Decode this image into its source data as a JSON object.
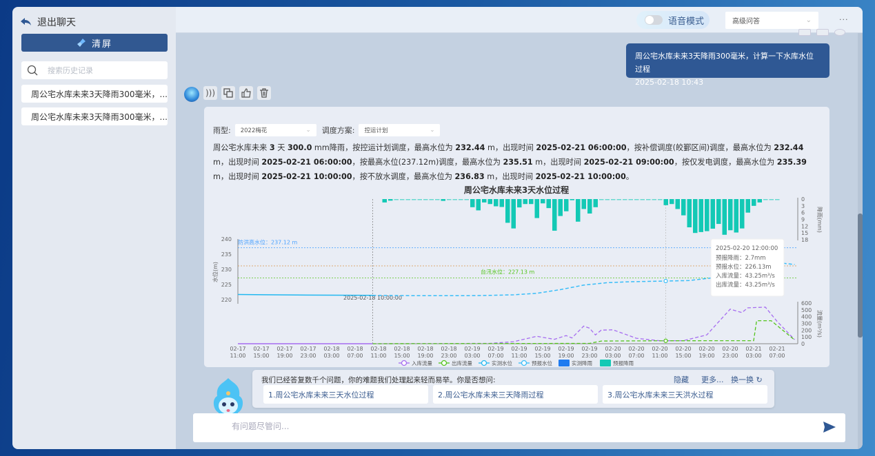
{
  "sidebar": {
    "back_label": "退出聊天",
    "clear_label": "清屏",
    "search_placeholder": "搜索历史记录",
    "history": [
      "周公宅水库未来3天降雨300毫米，...",
      "周公宅水库未来3天降雨300毫米，..."
    ]
  },
  "header": {
    "voice_label": "语音模式",
    "voice_on": false,
    "mode_value": "高级问答",
    "more_label": "···"
  },
  "user_message": {
    "text": "周公宅水库未来3天降雨300毫米，计算一下水库水位过程",
    "time": "2025-02-18 10:43"
  },
  "answer": {
    "rain_type_label": "雨型:",
    "rain_type_value": "2022梅花",
    "scheme_label": "调度方案:",
    "scheme_value": "控运计划",
    "summary": [
      {
        "t": "周公宅水库未来 "
      },
      {
        "t": "3",
        "b": true
      },
      {
        "t": " 天 "
      },
      {
        "t": "300.0",
        "b": true
      },
      {
        "t": " mm降雨，按控运计划调度，最高水位为 "
      },
      {
        "t": "232.44",
        "b": true
      },
      {
        "t": " m，出现时间 "
      },
      {
        "t": "2025-02-21 06:00:00",
        "b": true
      },
      {
        "t": "，按补偿调度(皎鄞区间)调度，最高水位为 "
      },
      {
        "t": "232.44",
        "b": true
      },
      {
        "t": " m，出现时间 "
      },
      {
        "t": "2025-02-21 06:00:00",
        "b": true
      },
      {
        "t": "，按最高水位(237.12m)调度，最高水位为 "
      },
      {
        "t": "235.51",
        "b": true
      },
      {
        "t": " m，出现时间 "
      },
      {
        "t": "2025-02-21 09:00:00",
        "b": true
      },
      {
        "t": "，按仅发电调度，最高水位为 "
      },
      {
        "t": "235.39",
        "b": true
      },
      {
        "t": " m，出现时间 "
      },
      {
        "t": "2025-02-21 10:00:00",
        "b": true
      },
      {
        "t": "，按不放水调度，最高水位为 "
      },
      {
        "t": "236.83",
        "b": true
      },
      {
        "t": " m，出现时间 "
      },
      {
        "t": "2025-02-21 10:00:00",
        "b": true
      },
      {
        "t": "。"
      }
    ]
  },
  "chart_data": {
    "type": "combo",
    "title": "周公宅水库未来3天水位过程",
    "y_level": {
      "label": "水位(m)",
      "range": [
        220,
        240
      ],
      "ticks": [
        220,
        225,
        230,
        235,
        240
      ]
    },
    "y_rain": {
      "label": "降雨(mm)",
      "range": [
        0,
        18
      ],
      "ticks": [
        0,
        3,
        6,
        9,
        12,
        15,
        18
      ],
      "inverted": true
    },
    "y_flow": {
      "label": "流量(m³/s)",
      "range": [
        0,
        600
      ],
      "ticks": [
        0,
        100,
        200,
        300,
        400,
        500,
        600
      ]
    },
    "x_ticks": [
      "02-17 11:00",
      "02-17 15:00",
      "02-17 19:00",
      "02-17 23:00",
      "02-18 03:00",
      "02-18 07:00",
      "02-18 11:00",
      "02-18 15:00",
      "02-18 19:00",
      "02-18 23:00",
      "02-19 03:00",
      "02-19 07:00",
      "02-19 11:00",
      "02-19 15:00",
      "02-19 19:00",
      "02-19 23:00",
      "02-20 03:00",
      "02-20 07:00",
      "02-20 11:00",
      "02-20 15:00",
      "02-20 19:00",
      "02-20 23:00",
      "02-21 03:00",
      "02-21 07:00"
    ],
    "reference_lines": [
      {
        "label": "防洪高水位：237.12 m",
        "value": 237.12,
        "color": "#4da3ff"
      },
      {
        "label": "231.13 m",
        "value": 231.13,
        "color": "#d9924a"
      },
      {
        "label": "台汛水位：227.13 m",
        "value": 227.13,
        "color": "#52c41a"
      }
    ],
    "now_marker": "2025-02-18 10:00:00",
    "forecast_rain": {
      "name": "预报降雨",
      "color": "#13c9b5",
      "start": "02-18 12:00",
      "step_hours": 1,
      "values": [
        1.5,
        0.7,
        0.2,
        0,
        0,
        0,
        0,
        0,
        0,
        0.3,
        0.8,
        0.2,
        0,
        0,
        0.2,
        3.6,
        5,
        1.5,
        2.2,
        3.2,
        3.5,
        10.5,
        13,
        3.7,
        2.2,
        2.2,
        8.4,
        1.9,
        4,
        14,
        7.5,
        5.4,
        0.5,
        10,
        4.4,
        6.4,
        3.6,
        0.3,
        0.3,
        0.3,
        0.3,
        0.3,
        0.3,
        0.3,
        0.3,
        0.3,
        0.3,
        0.3,
        2.7,
        2.2,
        4.4,
        7.2,
        12.5,
        15,
        14.6,
        14.2,
        13.1,
        11,
        15.8,
        13.8,
        14.8,
        13,
        6,
        3,
        1.5,
        0.3,
        0.3,
        0.2
      ]
    },
    "observed_level": {
      "name": "实测水位",
      "color": "#22b8f0",
      "points": [
        [
          "02-17 11:00",
          221.7
        ],
        [
          "02-17 23:00",
          221.5
        ],
        [
          "02-18 10:00",
          221.4
        ]
      ]
    },
    "forecast_level": {
      "name": "预报水位",
      "color": "#38bdf8",
      "points": [
        [
          "02-18 10:00",
          221.4
        ],
        [
          "02-18 18:00",
          221.3
        ],
        [
          "02-19 02:00",
          221.3
        ],
        [
          "02-19 06:00",
          221.4
        ],
        [
          "02-19 10:00",
          221.6
        ],
        [
          "02-19 14:00",
          222.1
        ],
        [
          "02-19 18:00",
          223.3
        ],
        [
          "02-19 22:00",
          224.8
        ],
        [
          "02-20 02:00",
          225.6
        ],
        [
          "02-20 06:00",
          225.9
        ],
        [
          "02-20 12:00",
          226.13
        ],
        [
          "02-20 16:00",
          226.3
        ],
        [
          "02-20 20:00",
          227.2
        ],
        [
          "02-21 00:00",
          229.2
        ],
        [
          "02-21 03:00",
          230.8
        ],
        [
          "02-21 06:00",
          232.44
        ],
        [
          "02-21 10:00",
          231.6
        ]
      ]
    },
    "inflow": {
      "name": "入库流量",
      "color": "#a66cf0",
      "points": [
        [
          "02-18 10:00",
          0
        ],
        [
          "02-19 06:00",
          5
        ],
        [
          "02-19 10:00",
          30
        ],
        [
          "02-19 14:00",
          110
        ],
        [
          "02-19 17:00",
          65
        ],
        [
          "02-19 19:00",
          120
        ],
        [
          "02-19 20:00",
          85
        ],
        [
          "02-19 22:00",
          260
        ],
        [
          "02-19 23:00",
          230
        ],
        [
          "02-20 00:00",
          130
        ],
        [
          "02-20 01:00",
          200
        ],
        [
          "02-20 03:00",
          205
        ],
        [
          "02-20 07:00",
          80
        ],
        [
          "02-20 11:00",
          43.25
        ],
        [
          "02-20 15:00",
          45
        ],
        [
          "02-20 19:00",
          130
        ],
        [
          "02-20 23:00",
          510
        ],
        [
          "02-21 01:00",
          460
        ],
        [
          "02-21 02:00",
          530
        ],
        [
          "02-21 05:00",
          540
        ],
        [
          "02-21 07:00",
          330
        ],
        [
          "02-21 10:00",
          60
        ]
      ]
    },
    "outflow": {
      "name": "出库流量",
      "color": "#52c41a",
      "points": [
        [
          "02-18 10:00",
          0
        ],
        [
          "02-19 23:00",
          5
        ],
        [
          "02-20 01:00",
          40
        ],
        [
          "02-20 12:00",
          43.25
        ],
        [
          "02-21 03:00",
          45
        ],
        [
          "02-21 03:30",
          340
        ],
        [
          "02-21 06:00",
          340
        ],
        [
          "02-21 10:00",
          55
        ]
      ]
    },
    "legend": [
      {
        "name": "入库流量",
        "color": "#a66cf0",
        "kind": "line"
      },
      {
        "name": "出库流量",
        "color": "#52c41a",
        "kind": "line"
      },
      {
        "name": "实测水位",
        "color": "#22b8f0",
        "kind": "line"
      },
      {
        "name": "预报水位",
        "color": "#38bdf8",
        "kind": "line"
      },
      {
        "name": "实测降雨",
        "color": "#1e7bf0",
        "kind": "bar"
      },
      {
        "name": "预报降雨",
        "color": "#13c9b5",
        "kind": "bar"
      }
    ],
    "legend_position": "bottom",
    "tooltip": {
      "time": "2025-02-20 12:00:00",
      "rows": [
        "预报降雨：2.7mm",
        "预报水位：226.13m",
        "入库流量：43.25m³/s",
        "出库流量：43.25m³/s"
      ]
    }
  },
  "suggestions": {
    "intro": "我们已经答复数千个问题，你的难题我们处理起来轻而易举。你是否想问:",
    "hide_label": "隐藏",
    "more_label": "更多...",
    "refresh_label": "换一换",
    "items": [
      "1.周公宅水库未来三天水位过程",
      "2.周公宅水库未来三天降雨过程",
      "3.周公宅水库未来三天洪水过程"
    ]
  },
  "input": {
    "placeholder": "有问题尽管问..."
  }
}
